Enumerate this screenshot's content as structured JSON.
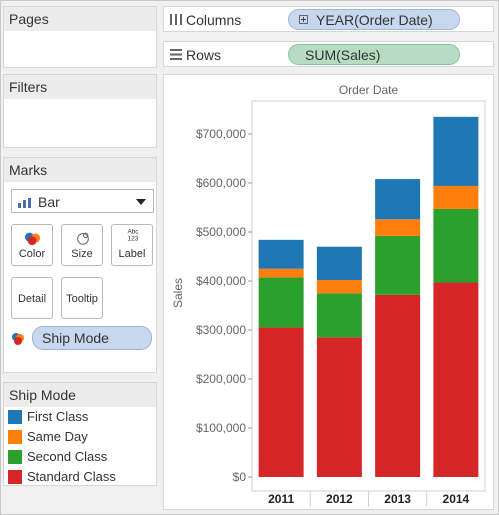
{
  "panes": {
    "pages": "Pages",
    "filters": "Filters",
    "marks": "Marks"
  },
  "marks": {
    "mark_type": "Bar",
    "buttons": {
      "color": "Color",
      "size": "Size",
      "label": "Label",
      "detail": "Detail",
      "tooltip": "Tooltip"
    },
    "label_icon_text": "Abc\n123",
    "color_field": "Ship Mode"
  },
  "shelves": {
    "columns_label": "Columns",
    "columns_pill": "YEAR(Order Date)",
    "rows_label": "Rows",
    "rows_pill": "SUM(Sales)"
  },
  "legend": {
    "title": "Ship Mode",
    "items": [
      {
        "label": "First Class",
        "color": "#1f77b4"
      },
      {
        "label": "Same Day",
        "color": "#ff7f0e"
      },
      {
        "label": "Second Class",
        "color": "#2ca02c"
      },
      {
        "label": "Standard Class",
        "color": "#d62728"
      }
    ]
  },
  "chart_data": {
    "type": "bar",
    "stacked": true,
    "title": "Order Date",
    "ylabel": "Sales",
    "ylim": [
      0,
      700000
    ],
    "yticks": [
      0,
      100000,
      200000,
      300000,
      400000,
      500000,
      600000,
      700000
    ],
    "ytick_labels": [
      "$0",
      "$100,000",
      "$200,000",
      "$300,000",
      "$400,000",
      "$500,000",
      "$600,000",
      "$700,000"
    ],
    "categories": [
      "2011",
      "2012",
      "2013",
      "2014"
    ],
    "series": [
      {
        "name": "Standard Class",
        "color": "#d62728",
        "values": [
          305000,
          285000,
          372000,
          397000
        ]
      },
      {
        "name": "Second Class",
        "color": "#2ca02c",
        "values": [
          102000,
          90000,
          120000,
          150000
        ]
      },
      {
        "name": "Same Day",
        "color": "#ff7f0e",
        "values": [
          18000,
          27000,
          34000,
          47000
        ]
      },
      {
        "name": "First Class",
        "color": "#1f77b4",
        "values": [
          59000,
          68000,
          82000,
          141000
        ]
      }
    ]
  }
}
